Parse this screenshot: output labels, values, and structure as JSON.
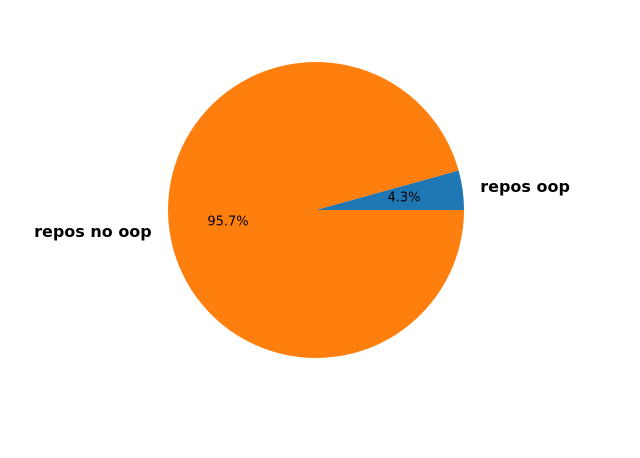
{
  "chart_data": {
    "type": "pie",
    "title": "",
    "start_angle_deg": 0,
    "direction": "counterclockwise",
    "slices": [
      {
        "label": "repos oop",
        "value": 4.3,
        "percent_label": "4.3%",
        "color": "#1f77b4"
      },
      {
        "label": "repos no oop",
        "value": 95.7,
        "percent_label": "95.7%",
        "color": "#ff7f0e"
      }
    ]
  }
}
